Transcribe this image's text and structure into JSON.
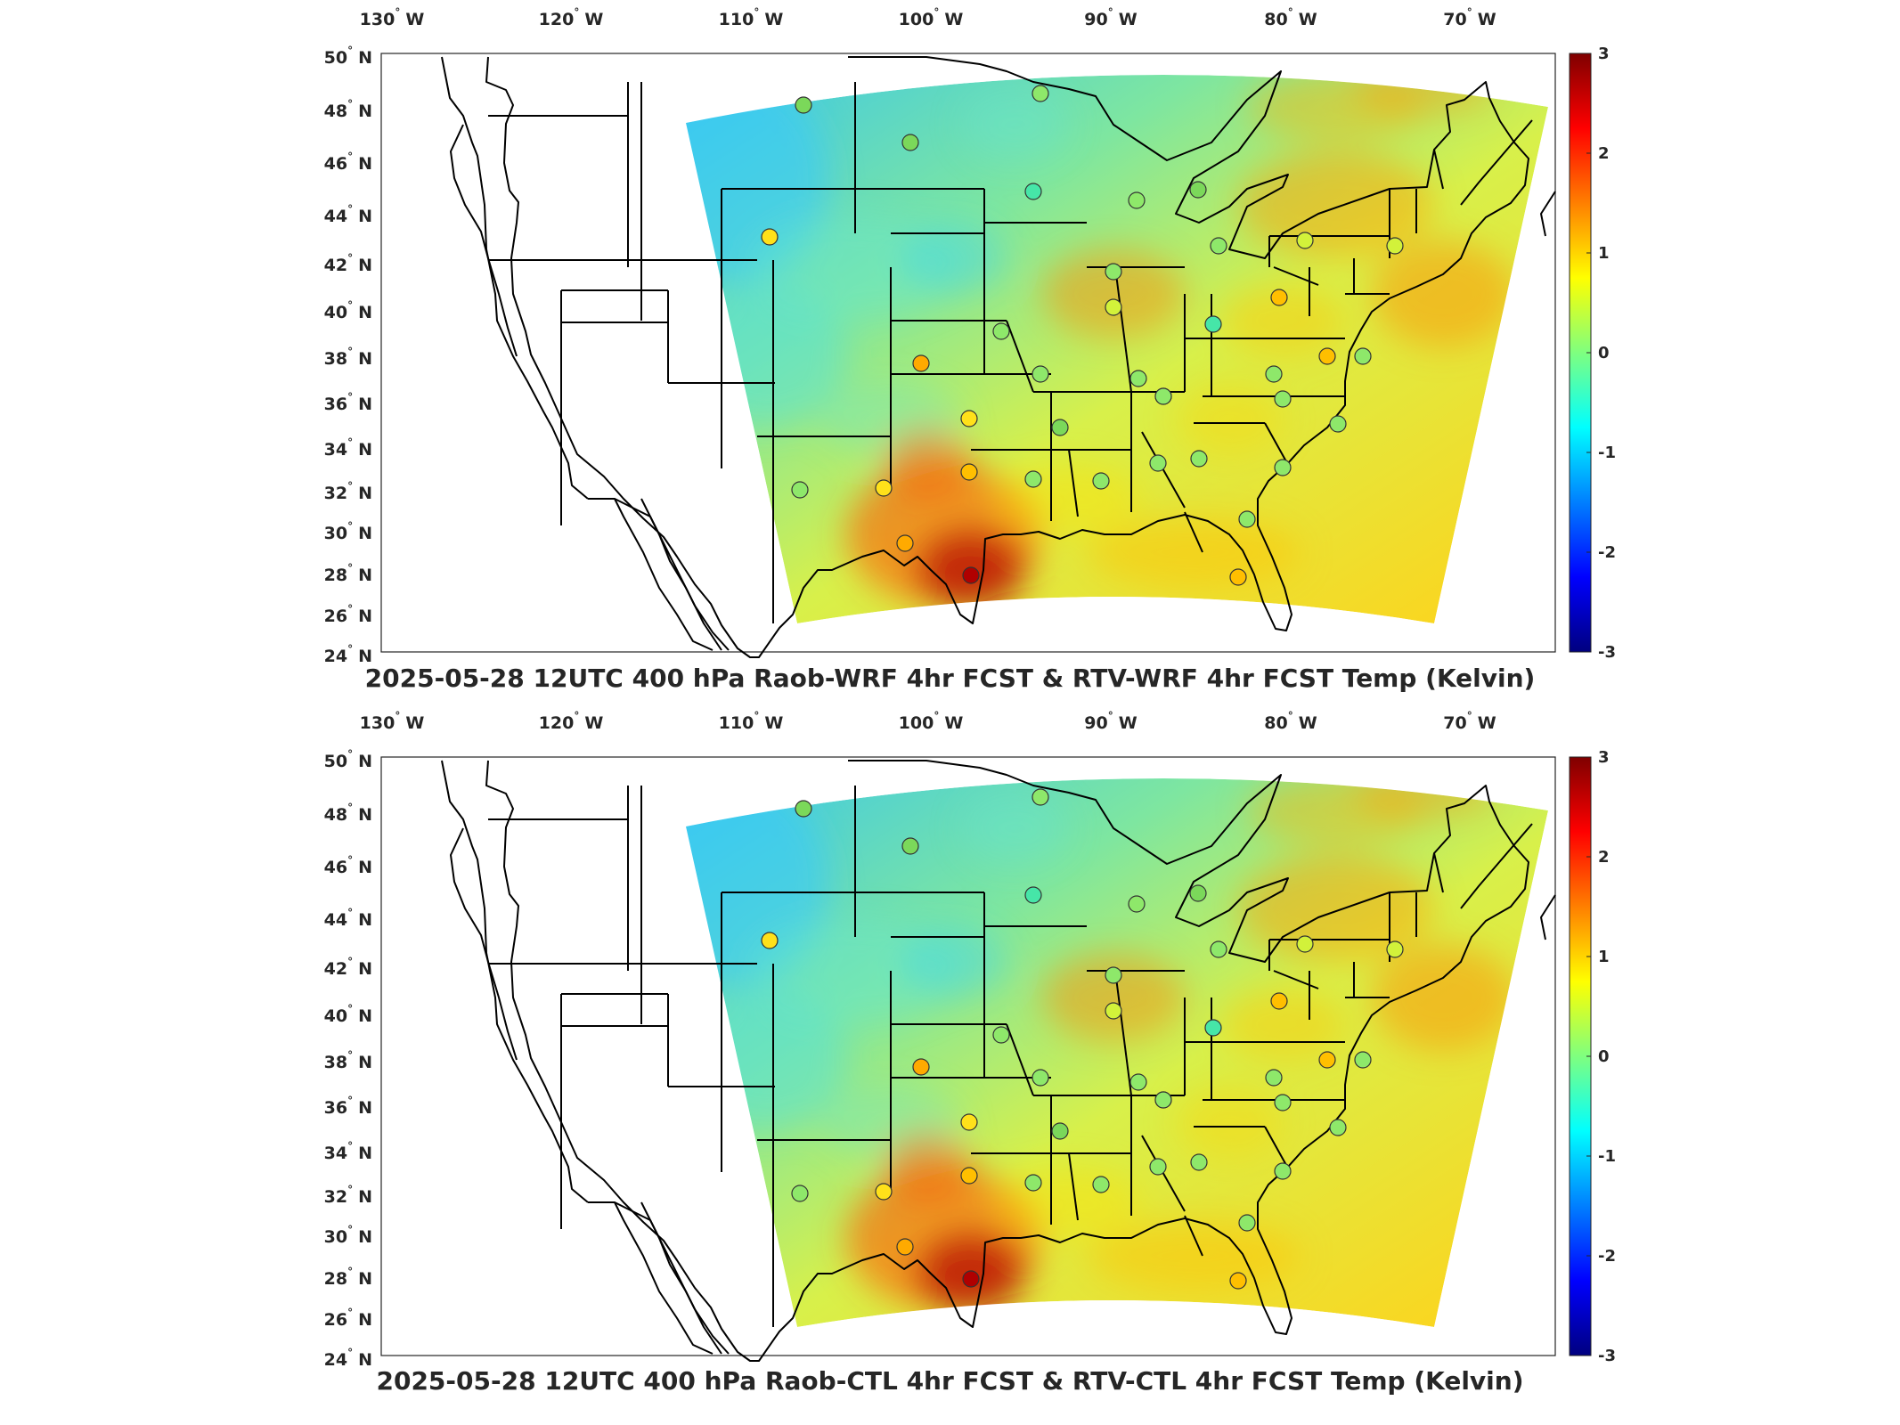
{
  "colorbar": {
    "ticks": [
      "3",
      "2",
      "1",
      "0",
      "-1",
      "-2",
      "-3"
    ],
    "colors": [
      "#00007f",
      "#0000ff",
      "#007fff",
      "#00ffff",
      "#7fff7f",
      "#ffff00",
      "#ff7f00",
      "#ff0000",
      "#7f0000"
    ]
  },
  "axes": {
    "lon_labels": [
      {
        "deg": "130",
        "hemi": "W"
      },
      {
        "deg": "120",
        "hemi": "W"
      },
      {
        "deg": "110",
        "hemi": "W"
      },
      {
        "deg": "100",
        "hemi": "W"
      },
      {
        "deg": "90",
        "hemi": "W"
      },
      {
        "deg": "80",
        "hemi": "W"
      },
      {
        "deg": "70",
        "hemi": "W"
      }
    ],
    "lat_labels": [
      {
        "deg": "50",
        "hemi": "N"
      },
      {
        "deg": "48",
        "hemi": "N"
      },
      {
        "deg": "46",
        "hemi": "N"
      },
      {
        "deg": "44",
        "hemi": "N"
      },
      {
        "deg": "42",
        "hemi": "N"
      },
      {
        "deg": "40",
        "hemi": "N"
      },
      {
        "deg": "38",
        "hemi": "N"
      },
      {
        "deg": "36",
        "hemi": "N"
      },
      {
        "deg": "34",
        "hemi": "N"
      },
      {
        "deg": "32",
        "hemi": "N"
      },
      {
        "deg": "30",
        "hemi": "N"
      },
      {
        "deg": "28",
        "hemi": "N"
      },
      {
        "deg": "26",
        "hemi": "N"
      },
      {
        "deg": "24",
        "hemi": "N"
      }
    ]
  },
  "panels": [
    {
      "title": "2025-05-28 12UTC 400 hPa Raob-WRF 4hr FCST & RTV-WRF 4hr FCST Temp (Kelvin)"
    },
    {
      "title": "2025-05-28 12UTC 400 hPa Raob-CTL 4hr FCST & RTV-CTL 4hr FCST Temp (Kelvin)"
    }
  ]
}
